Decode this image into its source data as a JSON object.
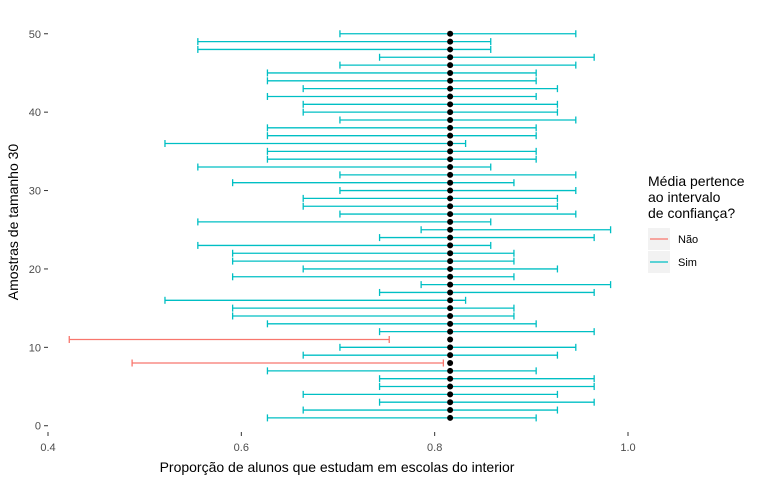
{
  "chart_data": {
    "type": "errorbar",
    "xlabel": "Proporção de alunos que estudam em escolas do interior",
    "ylabel": "Amostras de tamanho 30",
    "xlim": [
      0.4,
      1.0
    ],
    "ylim": [
      0,
      51
    ],
    "x_ticks": [
      "0.4",
      "0.6",
      "0.8",
      "1.0"
    ],
    "y_ticks": [
      "0",
      "10",
      "20",
      "30",
      "40",
      "50"
    ],
    "x_tick_values": [
      0.4,
      0.6,
      0.8,
      1.0
    ],
    "y_tick_values": [
      0,
      10,
      20,
      30,
      40,
      50
    ],
    "grid": false,
    "true_mean": 0.816,
    "legend": {
      "title_lines": [
        "Média pertence",
        "ao intervalo",
        "de confiança?"
      ],
      "position": "right",
      "entries": [
        {
          "label": "Não",
          "color": "#F8766D"
        },
        {
          "label": "Sim",
          "color": "#00BFC4"
        }
      ]
    },
    "intervals": [
      {
        "sample": 1,
        "low": 0.627,
        "high": 0.905,
        "contains": "Sim"
      },
      {
        "sample": 2,
        "low": 0.664,
        "high": 0.927,
        "contains": "Sim"
      },
      {
        "sample": 3,
        "low": 0.743,
        "high": 0.965,
        "contains": "Sim"
      },
      {
        "sample": 4,
        "low": 0.664,
        "high": 0.927,
        "contains": "Sim"
      },
      {
        "sample": 5,
        "low": 0.743,
        "high": 0.965,
        "contains": "Sim"
      },
      {
        "sample": 6,
        "low": 0.743,
        "high": 0.965,
        "contains": "Sim"
      },
      {
        "sample": 7,
        "low": 0.627,
        "high": 0.905,
        "contains": "Sim"
      },
      {
        "sample": 8,
        "low": 0.487,
        "high": 0.809,
        "contains": "Não"
      },
      {
        "sample": 9,
        "low": 0.664,
        "high": 0.927,
        "contains": "Sim"
      },
      {
        "sample": 10,
        "low": 0.702,
        "high": 0.946,
        "contains": "Sim"
      },
      {
        "sample": 11,
        "low": 0.422,
        "high": 0.753,
        "contains": "Não"
      },
      {
        "sample": 12,
        "low": 0.743,
        "high": 0.965,
        "contains": "Sim"
      },
      {
        "sample": 13,
        "low": 0.627,
        "high": 0.905,
        "contains": "Sim"
      },
      {
        "sample": 14,
        "low": 0.591,
        "high": 0.882,
        "contains": "Sim"
      },
      {
        "sample": 15,
        "low": 0.591,
        "high": 0.882,
        "contains": "Sim"
      },
      {
        "sample": 16,
        "low": 0.521,
        "high": 0.832,
        "contains": "Sim"
      },
      {
        "sample": 17,
        "low": 0.743,
        "high": 0.965,
        "contains": "Sim"
      },
      {
        "sample": 18,
        "low": 0.786,
        "high": 0.982,
        "contains": "Sim"
      },
      {
        "sample": 19,
        "low": 0.591,
        "high": 0.882,
        "contains": "Sim"
      },
      {
        "sample": 20,
        "low": 0.664,
        "high": 0.927,
        "contains": "Sim"
      },
      {
        "sample": 21,
        "low": 0.591,
        "high": 0.882,
        "contains": "Sim"
      },
      {
        "sample": 22,
        "low": 0.591,
        "high": 0.882,
        "contains": "Sim"
      },
      {
        "sample": 23,
        "low": 0.555,
        "high": 0.858,
        "contains": "Sim"
      },
      {
        "sample": 24,
        "low": 0.743,
        "high": 0.965,
        "contains": "Sim"
      },
      {
        "sample": 25,
        "low": 0.786,
        "high": 0.982,
        "contains": "Sim"
      },
      {
        "sample": 26,
        "low": 0.555,
        "high": 0.858,
        "contains": "Sim"
      },
      {
        "sample": 27,
        "low": 0.702,
        "high": 0.946,
        "contains": "Sim"
      },
      {
        "sample": 28,
        "low": 0.664,
        "high": 0.927,
        "contains": "Sim"
      },
      {
        "sample": 29,
        "low": 0.664,
        "high": 0.927,
        "contains": "Sim"
      },
      {
        "sample": 30,
        "low": 0.702,
        "high": 0.946,
        "contains": "Sim"
      },
      {
        "sample": 31,
        "low": 0.591,
        "high": 0.882,
        "contains": "Sim"
      },
      {
        "sample": 32,
        "low": 0.702,
        "high": 0.946,
        "contains": "Sim"
      },
      {
        "sample": 33,
        "low": 0.555,
        "high": 0.858,
        "contains": "Sim"
      },
      {
        "sample": 34,
        "low": 0.627,
        "high": 0.905,
        "contains": "Sim"
      },
      {
        "sample": 35,
        "low": 0.627,
        "high": 0.905,
        "contains": "Sim"
      },
      {
        "sample": 36,
        "low": 0.521,
        "high": 0.832,
        "contains": "Sim"
      },
      {
        "sample": 37,
        "low": 0.627,
        "high": 0.905,
        "contains": "Sim"
      },
      {
        "sample": 38,
        "low": 0.627,
        "high": 0.905,
        "contains": "Sim"
      },
      {
        "sample": 39,
        "low": 0.702,
        "high": 0.946,
        "contains": "Sim"
      },
      {
        "sample": 40,
        "low": 0.664,
        "high": 0.927,
        "contains": "Sim"
      },
      {
        "sample": 41,
        "low": 0.664,
        "high": 0.927,
        "contains": "Sim"
      },
      {
        "sample": 42,
        "low": 0.627,
        "high": 0.905,
        "contains": "Sim"
      },
      {
        "sample": 43,
        "low": 0.664,
        "high": 0.927,
        "contains": "Sim"
      },
      {
        "sample": 44,
        "low": 0.627,
        "high": 0.905,
        "contains": "Sim"
      },
      {
        "sample": 45,
        "low": 0.627,
        "high": 0.905,
        "contains": "Sim"
      },
      {
        "sample": 46,
        "low": 0.702,
        "high": 0.946,
        "contains": "Sim"
      },
      {
        "sample": 47,
        "low": 0.743,
        "high": 0.965,
        "contains": "Sim"
      },
      {
        "sample": 48,
        "low": 0.555,
        "high": 0.858,
        "contains": "Sim"
      },
      {
        "sample": 49,
        "low": 0.555,
        "high": 0.858,
        "contains": "Sim"
      },
      {
        "sample": 50,
        "low": 0.702,
        "high": 0.946,
        "contains": "Sim"
      }
    ]
  }
}
